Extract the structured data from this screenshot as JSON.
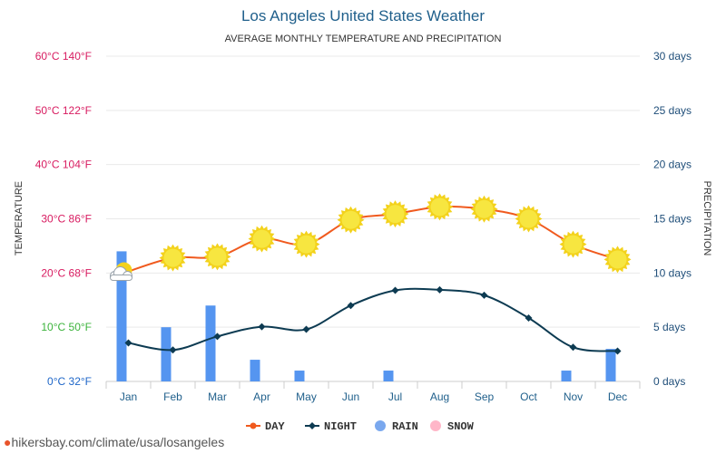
{
  "chart_data": {
    "type": "line+bar",
    "title": "Los Angeles United States Weather",
    "subtitle": "AVERAGE MONTHLY TEMPERATURE AND PRECIPITATION",
    "ylabel": "TEMPERATURE",
    "y2label": "PRECIPITATION",
    "categories": [
      "Jan",
      "Feb",
      "Mar",
      "Apr",
      "May",
      "Jun",
      "Jul",
      "Aug",
      "Sep",
      "Oct",
      "Nov",
      "Dec"
    ],
    "ylim": [
      0,
      60
    ],
    "y2lim": [
      0,
      30
    ],
    "y_ticks": [
      {
        "value": 60,
        "label": "60°C 140°F",
        "color": "#d81b60"
      },
      {
        "value": 50,
        "label": "50°C 122°F",
        "color": "#d81b60"
      },
      {
        "value": 40,
        "label": "40°C 104°F",
        "color": "#d81b60"
      },
      {
        "value": 30,
        "label": "30°C 86°F",
        "color": "#d81b60"
      },
      {
        "value": 20,
        "label": "20°C 68°F",
        "color": "#d81b60"
      },
      {
        "value": 10,
        "label": "10°C 50°F",
        "color": "#3bb33b"
      },
      {
        "value": 0,
        "label": "0°C 32°F",
        "color": "#1e66c8"
      }
    ],
    "y2_ticks": [
      {
        "value": 30,
        "label": "30 days"
      },
      {
        "value": 25,
        "label": "25 days"
      },
      {
        "value": 20,
        "label": "20 days"
      },
      {
        "value": 15,
        "label": "15 days"
      },
      {
        "value": 10,
        "label": "10 days"
      },
      {
        "value": 5,
        "label": "5 days"
      },
      {
        "value": 0,
        "label": "0 days"
      }
    ],
    "series": [
      {
        "name": "DAY",
        "axis": "temperature",
        "color": "#f05a1e",
        "values": [
          20.3,
          22.8,
          23.0,
          26.3,
          25.3,
          29.8,
          30.9,
          32.2,
          31.8,
          30.0,
          25.3,
          22.5
        ],
        "icons": [
          "partly-cloudy",
          "sun",
          "sun",
          "sun",
          "sun",
          "sun",
          "sun",
          "sun",
          "sun",
          "sun",
          "sun",
          "sun"
        ]
      },
      {
        "name": "NIGHT",
        "axis": "temperature",
        "color": "#0d3b52",
        "values": [
          7.1,
          5.8,
          8.3,
          10.1,
          9.6,
          14.0,
          16.8,
          16.9,
          15.9,
          11.7,
          6.3,
          5.6
        ]
      },
      {
        "name": "RAIN",
        "axis": "precipitation",
        "color": "#5595f0",
        "values": [
          12,
          5,
          7,
          2,
          1,
          0,
          1,
          0,
          0,
          0,
          1,
          3
        ]
      },
      {
        "name": "SNOW",
        "axis": "precipitation",
        "color": "#ffb6c8",
        "values": [
          0,
          0,
          0,
          0,
          0,
          0,
          0,
          0,
          0,
          0,
          0,
          0
        ]
      }
    ],
    "legend": [
      {
        "name": "DAY",
        "color": "#f05a1e",
        "marker": "line-dot"
      },
      {
        "name": "NIGHT",
        "color": "#0d3b52",
        "marker": "line-diamond"
      },
      {
        "name": "RAIN",
        "color": "#7aa8ee",
        "marker": "circle"
      },
      {
        "name": "SNOW",
        "color": "#ffb6c8",
        "marker": "circle"
      }
    ],
    "legend_position": "bottom-center",
    "grid": true
  },
  "watermark": {
    "text": "hikersbay.com/climate/usa/losangeles"
  }
}
